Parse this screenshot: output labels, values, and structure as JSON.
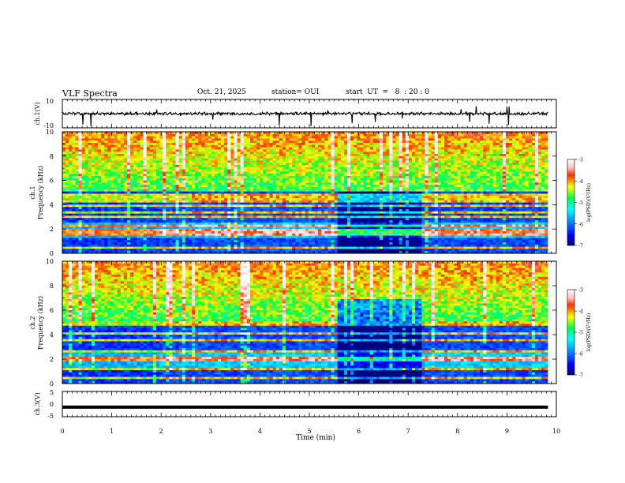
{
  "header": {
    "title": "VLF Spectra",
    "date": "Oct. 21, 2025",
    "station": "station= OUI",
    "start_ut": "start  UT  =   8  : 20 : 0"
  },
  "chart_data": [
    {
      "type": "line",
      "panel": "ch1-waveform",
      "ylabel": "ch.1(V)",
      "ylim": [
        -10,
        10
      ],
      "yticks": [
        10,
        -10
      ],
      "xlim": [
        0,
        10
      ],
      "baseline": 0,
      "series": [
        {
          "values_summary": "noisy waveform around 0 V with amplitude ~±1 V and spikes up to ~±10 V"
        }
      ],
      "color": "#000000"
    },
    {
      "type": "heatmap",
      "panel": "ch1-spectrogram",
      "ylabel": "ch.1\nFrequency (kHz)",
      "ylabel_line1": "ch.1",
      "ylabel_line2": "Frequency (kHz)",
      "ylim": [
        0,
        10
      ],
      "yticks": [
        0,
        2,
        4,
        6,
        8,
        10
      ],
      "xlim": [
        0,
        10
      ],
      "data_end_min": 9.83,
      "colorbar": {
        "label": "log(PSD)(V²/Hz)",
        "range": [
          -7,
          -3
        ],
        "ticks": [
          -3,
          -4,
          -5,
          -6,
          -7
        ]
      },
      "segments_min": [
        0,
        1.95,
        2.6,
        5.55,
        7.3,
        9.83
      ],
      "intense_lines_khz": [
        0.5,
        1.6,
        1.9,
        2.3,
        3.0,
        3.4,
        3.9,
        4.4,
        4.7
      ]
    },
    {
      "type": "heatmap",
      "panel": "ch2-spectrogram",
      "ylabel_line1": "ch.2",
      "ylabel_line2": "Frequency (kHz)",
      "ylim": [
        0,
        10
      ],
      "yticks": [
        0,
        2,
        4,
        6,
        8,
        10
      ],
      "xlim": [
        0,
        10
      ],
      "data_end_min": 9.83,
      "colorbar": {
        "label": "log(PSD)(V²/Hz)",
        "range": [
          -7,
          -3
        ],
        "ticks": [
          -3,
          -4,
          -5,
          -6,
          -7
        ]
      },
      "segments_min": [
        0,
        1.95,
        2.6,
        5.55,
        7.3,
        9.83
      ],
      "intense_lines_khz": [
        0.5,
        1.2,
        2.0,
        2.6,
        3.5,
        4.1,
        4.9,
        5.4
      ]
    },
    {
      "type": "line",
      "panel": "ch3-waveform",
      "ylabel": "ch.3(V)",
      "ylim": [
        -5,
        5
      ],
      "yticks": [
        5,
        0,
        -5
      ],
      "xlim": [
        0,
        10
      ],
      "series": [
        {
          "values_summary": "flat thick line near -1.2 V"
        }
      ],
      "level": -1.2,
      "xlabel": "Time  (min)",
      "xticks": [
        0,
        1,
        2,
        3,
        4,
        5,
        6,
        7,
        8,
        9,
        10
      ]
    }
  ]
}
